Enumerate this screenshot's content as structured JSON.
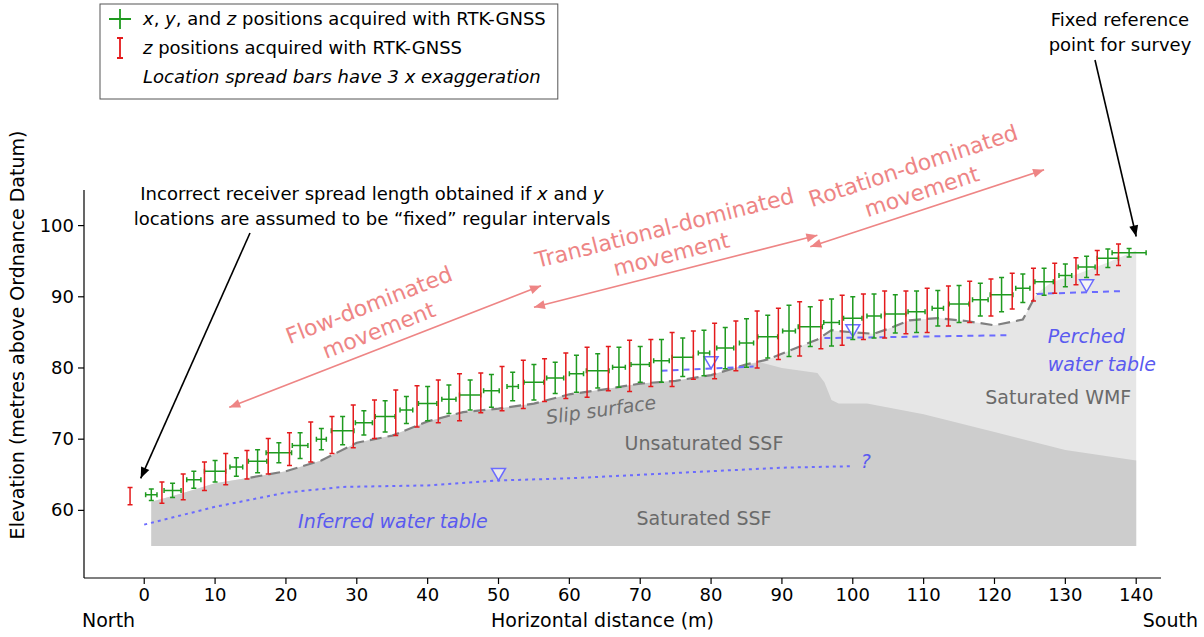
{
  "chart_data": {
    "type": "scatter",
    "xlabel": "Horizontal distance (m)",
    "ylabel": "Elevation (metres above Ordnance Datum)",
    "direction_labels": {
      "left": "North",
      "right": "South"
    },
    "xlim": [
      -8.5,
      143.5
    ],
    "ylim": [
      50.5,
      105
    ],
    "xticks": [
      0,
      10,
      20,
      30,
      40,
      50,
      60,
      70,
      80,
      90,
      100,
      110,
      120,
      130,
      140
    ],
    "yticks": [
      60,
      70,
      80,
      90,
      100
    ],
    "grid": false,
    "legend": "upper left",
    "legend_note": "Location spread bars have 3 x exaggeration",
    "series": [
      {
        "name": "x, y, and z positions acquired with RTK-GNSS",
        "color": "#1f9a1f",
        "marker": "cross",
        "x": [
          1,
          4,
          7,
          10,
          13,
          16,
          19,
          22,
          25,
          28,
          31,
          34,
          37,
          40,
          43,
          46,
          49,
          52,
          55,
          58,
          61,
          64,
          67,
          70,
          73,
          76,
          79,
          82,
          85,
          88,
          91,
          94,
          97,
          100,
          103,
          106,
          109,
          112,
          115,
          118,
          121,
          124,
          127,
          130,
          133,
          136,
          139
        ],
        "values": [
          62.2,
          62.8,
          64.3,
          65.5,
          66.1,
          66.9,
          68.1,
          69.1,
          70.0,
          71.2,
          72.3,
          73.2,
          74.1,
          75.0,
          75.6,
          76.2,
          76.8,
          77.4,
          78.0,
          78.6,
          79.2,
          79.6,
          80.1,
          80.5,
          81.0,
          81.5,
          82.1,
          82.8,
          83.5,
          84.4,
          85.2,
          85.8,
          86.4,
          87.0,
          87.3,
          87.6,
          87.9,
          88.4,
          89.0,
          89.6,
          90.3,
          91.2,
          92.1,
          93.0,
          94.2,
          95.4,
          96.2
        ],
        "x_err": [
          0.8,
          1.2,
          1.0,
          1.5,
          0.9,
          1.3,
          1.8,
          1.1,
          0.7,
          1.6,
          1.2,
          1.4,
          0.9,
          1.3,
          1.0,
          1.5,
          1.1,
          0.8,
          1.4,
          1.2,
          1.0,
          1.6,
          0.9,
          1.3,
          1.1,
          1.5,
          0.8,
          1.2,
          1.0,
          1.4,
          0.9,
          1.7,
          1.1,
          1.3,
          1.0,
          1.5,
          1.2,
          0.8,
          1.4,
          1.1,
          1.6,
          1.0,
          1.3,
          0.9,
          1.2,
          1.5,
          2.4
        ],
        "z_err": [
          0.8,
          1.0,
          1.2,
          1.5,
          1.3,
          1.6,
          1.4,
          1.8,
          1.5,
          2.0,
          1.7,
          2.2,
          1.9,
          2.4,
          2.0,
          2.1,
          2.3,
          2.0,
          2.5,
          2.2,
          2.6,
          2.4,
          2.8,
          2.5,
          3.0,
          2.7,
          3.2,
          2.9,
          3.4,
          3.0,
          3.6,
          2.8,
          3.3,
          3.0,
          3.1,
          2.7,
          2.9,
          2.5,
          2.6,
          2.3,
          2.4,
          2.0,
          1.9,
          1.6,
          1.5,
          1.3,
          0.6
        ]
      },
      {
        "name": "z positions acquired with RTK-GNSS",
        "color": "#e41a1c",
        "marker": "vbar",
        "x": [
          -2,
          2.5,
          5.5,
          8.5,
          11.5,
          14.5,
          17.5,
          20.5,
          23.5,
          26.5,
          29.5,
          32.5,
          35.5,
          38.5,
          41.5,
          44.5,
          47.5,
          50.5,
          53.5,
          56.5,
          59.5,
          62.5,
          65.5,
          68.5,
          71.5,
          74.5,
          77.5,
          80.5,
          83.5,
          86.5,
          89.5,
          92.5,
          95.5,
          98.5,
          101.5,
          104.5,
          107.5,
          110.5,
          113.5,
          116.5,
          119.5,
          122.5,
          125.5,
          128.5,
          131.5,
          134.5,
          137.5
        ],
        "values": [
          62.0,
          62.5,
          63.3,
          64.8,
          65.8,
          66.4,
          67.6,
          68.6,
          69.6,
          70.6,
          71.8,
          72.8,
          73.7,
          74.6,
          75.3,
          75.9,
          76.5,
          77.1,
          77.7,
          78.3,
          78.9,
          79.4,
          79.9,
          80.3,
          80.7,
          81.2,
          81.8,
          82.4,
          83.1,
          84.0,
          84.8,
          85.5,
          86.1,
          86.7,
          87.2,
          87.5,
          87.8,
          88.1,
          88.7,
          89.3,
          89.9,
          90.8,
          91.7,
          92.6,
          93.6,
          94.8,
          95.9
        ],
        "z_err": [
          1.2,
          1.5,
          1.8,
          2.0,
          2.2,
          2.0,
          2.5,
          2.3,
          2.8,
          2.6,
          3.0,
          2.7,
          3.2,
          2.9,
          3.0,
          3.3,
          2.8,
          3.1,
          3.4,
          3.0,
          3.2,
          3.5,
          3.1,
          3.6,
          3.3,
          3.8,
          3.4,
          3.9,
          3.5,
          4.0,
          3.6,
          3.8,
          3.4,
          3.5,
          3.2,
          3.3,
          3.0,
          3.1,
          2.8,
          2.9,
          2.6,
          2.5,
          2.3,
          2.1,
          1.9,
          1.7,
          1.5
        ]
      }
    ],
    "regions": {
      "base": 55,
      "upper_fill": {
        "x": [
          1,
          5,
          10,
          15,
          20,
          25,
          30,
          35,
          40,
          45,
          50,
          55,
          60,
          65,
          70,
          75,
          80,
          85,
          88,
          92,
          95,
          97,
          100,
          103,
          105,
          108,
          112,
          116,
          120,
          124,
          126,
          128,
          132,
          136,
          140
        ],
        "y": [
          61.2,
          62.3,
          63.8,
          64.6,
          65.5,
          67.0,
          69.5,
          70.5,
          72.5,
          73.8,
          74.3,
          75.0,
          76.3,
          77.0,
          77.8,
          78.2,
          79.0,
          80.5,
          81.2,
          82.8,
          84.0,
          85.3,
          85.0,
          84.8,
          85.5,
          86.7,
          87.0,
          86.6,
          86.0,
          86.8,
          90.5,
          92.0,
          93.3,
          94.8,
          96.5
        ]
      },
      "ssf_fill": {
        "x": [
          1,
          5,
          10,
          15,
          20,
          25,
          30,
          35,
          40,
          45,
          50,
          55,
          60,
          65,
          70,
          75,
          80,
          85,
          87,
          90,
          95,
          96,
          97,
          98,
          102,
          110,
          120,
          130,
          140
        ],
        "y": [
          61.2,
          62.3,
          63.8,
          64.6,
          65.5,
          67.0,
          69.5,
          70.5,
          72.5,
          73.8,
          74.3,
          75.0,
          76.3,
          77.0,
          77.8,
          78.2,
          79.0,
          80.5,
          80.8,
          80.0,
          79.3,
          78.0,
          75.5,
          75.0,
          75.0,
          73.5,
          71.0,
          68.5,
          67.0
        ]
      }
    },
    "region_labels": [
      "Unsaturated SSF",
      "Saturated SSF",
      "Saturated WMF"
    ],
    "slip_surface": {
      "label": "Slip surface",
      "x": [
        15,
        20,
        25,
        30,
        35,
        40,
        45,
        50,
        55,
        60,
        65,
        70,
        75,
        80,
        85,
        88,
        92,
        95,
        97,
        100,
        103,
        105,
        108,
        112,
        116,
        120,
        124,
        126
      ],
      "y": [
        64.6,
        65.5,
        67.0,
        69.5,
        70.5,
        72.5,
        73.8,
        74.3,
        75.0,
        76.3,
        77.0,
        77.8,
        78.2,
        79.0,
        80.5,
        81.2,
        82.8,
        84.0,
        85.3,
        85.0,
        84.8,
        85.5,
        86.7,
        87.0,
        86.6,
        86.0,
        86.8,
        90.5
      ]
    },
    "inferred_water_table": {
      "label": "Inferred water table",
      "uncertain_label": "?",
      "x": [
        0,
        10,
        20,
        28,
        40,
        50,
        60,
        70,
        80,
        90,
        100
      ],
      "y": [
        58.0,
        60.5,
        62.5,
        63.3,
        63.5,
        64.2,
        64.5,
        65.0,
        65.5,
        66.0,
        66.2
      ],
      "marker_x": 50,
      "marker_y": 64.2
    },
    "perched_water_table": {
      "label": [
        "Perched",
        "water table"
      ],
      "pieces": [
        {
          "x": [
            73,
            86
          ],
          "y": [
            79.6,
            80.2
          ]
        },
        {
          "x": [
            96,
            122
          ],
          "y": [
            84.2,
            84.6
          ]
        },
        {
          "x": [
            126,
            138
          ],
          "y": [
            90.4,
            90.8
          ]
        }
      ],
      "marker_x": [
        80,
        100,
        133
      ],
      "marker_y": [
        79.9,
        84.4,
        90.7
      ]
    },
    "movement_zones": [
      {
        "label": [
          "Flow-dominated",
          "movement"
        ],
        "x": [
          12,
          56
        ]
      },
      {
        "label": [
          "Translational-dominated",
          "movement"
        ],
        "x": [
          55,
          95
        ]
      },
      {
        "label": [
          "Rotation-dominated",
          "movement"
        ],
        "x": [
          94,
          127
        ]
      }
    ],
    "annotations": [
      {
        "text": [
          "Incorrect receiver spread length obtained if x and y",
          "locations are assumed to be “fixed” regular intervals"
        ],
        "x": -0.5,
        "y": 64.5
      },
      {
        "text": [
          "Fixed reference",
          "point for survey"
        ],
        "x": 140,
        "y": 96.5
      }
    ]
  }
}
